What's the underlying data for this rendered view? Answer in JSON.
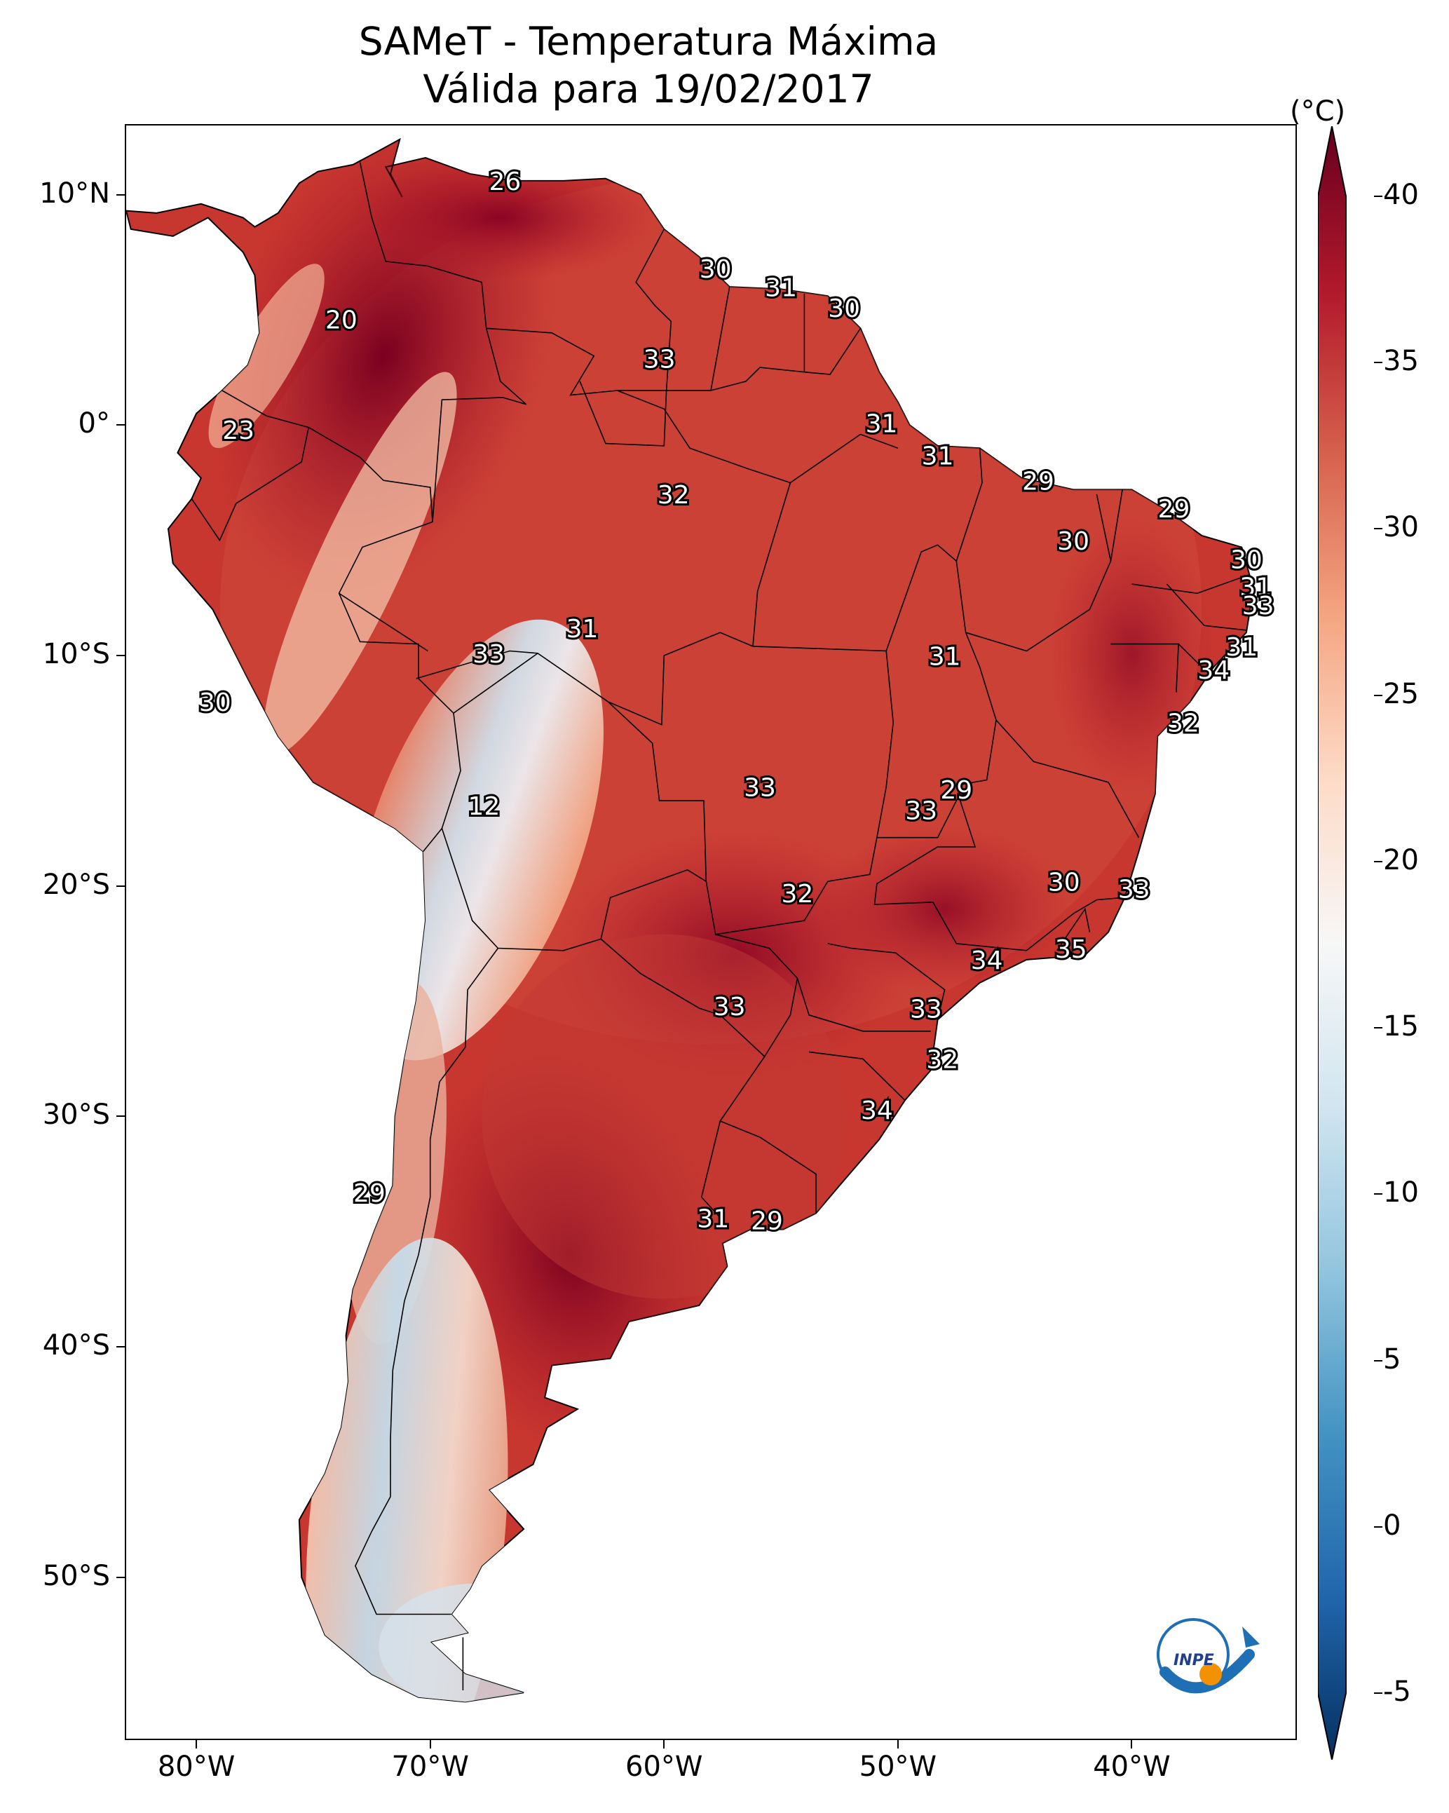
{
  "title": {
    "line1": "SAMeT - Temperatura Máxima",
    "line2": "Válida para 19/02/2017"
  },
  "map": {
    "lon_range": [
      -83,
      -33
    ],
    "lat_range": [
      -57,
      13
    ],
    "lat_ticks": [
      {
        "value": 10,
        "label": "10°N"
      },
      {
        "value": 0,
        "label": "0°"
      },
      {
        "value": -10,
        "label": "10°S"
      },
      {
        "value": -20,
        "label": "20°S"
      },
      {
        "value": -30,
        "label": "30°S"
      },
      {
        "value": -40,
        "label": "40°S"
      },
      {
        "value": -50,
        "label": "50°S"
      }
    ],
    "lon_ticks": [
      {
        "value": -80,
        "label": "80°W"
      },
      {
        "value": -70,
        "label": "70°W"
      },
      {
        "value": -60,
        "label": "60°W"
      },
      {
        "value": -50,
        "label": "50°W"
      },
      {
        "value": -40,
        "label": "40°W"
      }
    ]
  },
  "colorbar": {
    "unit": "(°C)",
    "min": -5,
    "max": 40,
    "ticks": [
      {
        "value": 40,
        "label": "40"
      },
      {
        "value": 35,
        "label": "35"
      },
      {
        "value": 30,
        "label": "30"
      },
      {
        "value": 25,
        "label": "25"
      },
      {
        "value": 20,
        "label": "20"
      },
      {
        "value": 15,
        "label": "15"
      },
      {
        "value": 10,
        "label": "10"
      },
      {
        "value": 5,
        "label": "5"
      },
      {
        "value": 0,
        "label": "0"
      },
      {
        "value": -5,
        "label": "-5"
      }
    ],
    "colors": [
      "#053061",
      "#2166ac",
      "#4393c3",
      "#92c5de",
      "#d1e5f0",
      "#f7f7f7",
      "#fddbc7",
      "#f4a582",
      "#d6604d",
      "#b2182b",
      "#67001f"
    ]
  },
  "station_values": [
    {
      "label": "26",
      "lon": -66.8,
      "lat": 10.5
    },
    {
      "label": "30",
      "lon": -57.8,
      "lat": 6.7
    },
    {
      "label": "31",
      "lon": -55.0,
      "lat": 5.9
    },
    {
      "label": "30",
      "lon": -52.3,
      "lat": 5.0
    },
    {
      "label": "20",
      "lon": -73.8,
      "lat": 4.5
    },
    {
      "label": "33",
      "lon": -60.2,
      "lat": 2.8
    },
    {
      "label": "23",
      "lon": -78.2,
      "lat": -0.3
    },
    {
      "label": "31",
      "lon": -50.7,
      "lat": 0.0
    },
    {
      "label": "31",
      "lon": -48.3,
      "lat": -1.4
    },
    {
      "label": "29",
      "lon": -44.0,
      "lat": -2.5
    },
    {
      "label": "32",
      "lon": -59.6,
      "lat": -3.1
    },
    {
      "label": "29",
      "lon": -38.2,
      "lat": -3.7
    },
    {
      "label": "30",
      "lon": -42.5,
      "lat": -5.1
    },
    {
      "label": "30",
      "lon": -35.1,
      "lat": -5.9
    },
    {
      "label": "31",
      "lon": -34.7,
      "lat": -7.1
    },
    {
      "label": "33",
      "lon": -34.6,
      "lat": -7.9
    },
    {
      "label": "31",
      "lon": -63.5,
      "lat": -8.9
    },
    {
      "label": "33",
      "lon": -67.5,
      "lat": -10.0
    },
    {
      "label": "31",
      "lon": -48.0,
      "lat": -10.1
    },
    {
      "label": "31",
      "lon": -35.3,
      "lat": -9.7
    },
    {
      "label": "34",
      "lon": -36.5,
      "lat": -10.7
    },
    {
      "label": "30",
      "lon": -79.2,
      "lat": -12.1
    },
    {
      "label": "32",
      "lon": -37.8,
      "lat": -13.0
    },
    {
      "label": "33",
      "lon": -55.9,
      "lat": -15.8
    },
    {
      "label": "29",
      "lon": -47.5,
      "lat": -15.9
    },
    {
      "label": "33",
      "lon": -49.0,
      "lat": -16.8
    },
    {
      "label": "12",
      "lon": -67.7,
      "lat": -16.6
    },
    {
      "label": "30",
      "lon": -42.9,
      "lat": -19.9
    },
    {
      "label": "32",
      "lon": -54.3,
      "lat": -20.4
    },
    {
      "label": "33",
      "lon": -39.9,
      "lat": -20.2
    },
    {
      "label": "35",
      "lon": -42.6,
      "lat": -22.8
    },
    {
      "label": "34",
      "lon": -46.2,
      "lat": -23.3
    },
    {
      "label": "33",
      "lon": -57.2,
      "lat": -25.3
    },
    {
      "label": "33",
      "lon": -48.8,
      "lat": -25.4
    },
    {
      "label": "32",
      "lon": -48.1,
      "lat": -27.6
    },
    {
      "label": "34",
      "lon": -50.9,
      "lat": -29.8
    },
    {
      "label": "29",
      "lon": -72.6,
      "lat": -33.4
    },
    {
      "label": "31",
      "lon": -57.9,
      "lat": -34.5
    },
    {
      "label": "29",
      "lon": -55.6,
      "lat": -34.6
    }
  ],
  "logo": {
    "text": "INPE"
  }
}
